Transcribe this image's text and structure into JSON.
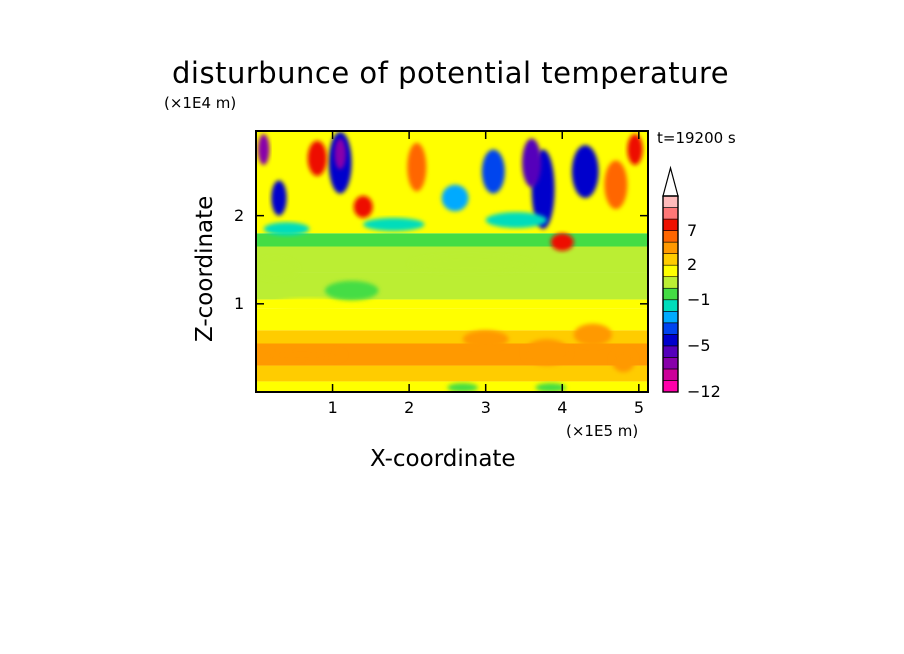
{
  "chart_data": {
    "type": "heatmap",
    "title": "disturbunce of potential temperature",
    "xlabel": "X-coordinate",
    "ylabel": "Z-coordinate",
    "x_unit": "(×1E5 m)",
    "y_unit": "(×1E4 m)",
    "time_label": "t=19200 s",
    "xlim": [
      0,
      5.12
    ],
    "ylim": [
      0,
      2.96
    ],
    "x_ticks": [
      {
        "value": 1,
        "label": "1"
      },
      {
        "value": 2,
        "label": "2"
      },
      {
        "value": 3,
        "label": "3"
      },
      {
        "value": 4,
        "label": "4"
      },
      {
        "value": 5,
        "label": "5"
      }
    ],
    "y_ticks": [
      {
        "value": 1,
        "label": "1"
      },
      {
        "value": 2,
        "label": "2"
      }
    ],
    "colorbar": {
      "levels": [
        -12,
        -11,
        -9,
        -7,
        -5,
        -4,
        -3,
        -2,
        -1,
        0,
        1,
        2,
        3,
        5,
        7,
        9,
        11
      ],
      "colors": [
        "#ff00aa",
        "#cc0099",
        "#8800aa",
        "#5500bb",
        "#0000cc",
        "#0044ee",
        "#00aaff",
        "#00ddbb",
        "#44dd44",
        "#bbee33",
        "#ffff00",
        "#ffcc00",
        "#ff9900",
        "#ff6600",
        "#ee1100",
        "#ff7777",
        "#ffbbbb"
      ],
      "tick_labels": [
        {
          "value": -12,
          "label": "−12"
        },
        {
          "value": -5,
          "label": "−5"
        },
        {
          "value": -1,
          "label": "−1"
        },
        {
          "value": 2,
          "label": "2"
        },
        {
          "value": 7,
          "label": "7"
        }
      ],
      "extend": "max"
    },
    "bands": [
      {
        "z0": 0.0,
        "z1": 0.12,
        "level": 1
      },
      {
        "z0": 0.12,
        "z1": 0.3,
        "level": 2
      },
      {
        "z0": 0.3,
        "z1": 0.55,
        "level": 3
      },
      {
        "z0": 0.55,
        "z1": 0.7,
        "level": 2
      },
      {
        "z0": 0.7,
        "z1": 0.95,
        "level": 1
      },
      {
        "z0": 0.95,
        "z1": 1.05,
        "level": 1
      },
      {
        "z0": 1.05,
        "z1": 1.35,
        "level": 0
      },
      {
        "z0": 1.35,
        "z1": 1.65,
        "level": 0
      },
      {
        "z0": 1.65,
        "z1": 1.8,
        "level": -1
      },
      {
        "z0": 1.8,
        "z1": 2.96,
        "level": 1
      }
    ],
    "features": [
      {
        "x": 0.6,
        "z": 0.42,
        "w": 1.1,
        "h": 0.16,
        "level": 3
      },
      {
        "x": 0.7,
        "z": 1.0,
        "w": 0.9,
        "h": 0.12,
        "level": 1
      },
      {
        "x": 1.25,
        "z": 1.15,
        "w": 0.7,
        "h": 0.22,
        "level": -1
      },
      {
        "x": 0.25,
        "z": 1.4,
        "w": 0.6,
        "h": 0.25,
        "level": 0
      },
      {
        "x": 2.8,
        "z": 1.45,
        "w": 1.6,
        "h": 0.2,
        "level": 0
      },
      {
        "x": 3.8,
        "z": 0.45,
        "w": 0.6,
        "h": 0.3,
        "level": 3
      },
      {
        "x": 3.0,
        "z": 0.6,
        "w": 0.6,
        "h": 0.2,
        "level": 3
      },
      {
        "x": 4.4,
        "z": 0.65,
        "w": 0.5,
        "h": 0.25,
        "level": 3
      },
      {
        "x": 4.8,
        "z": 0.35,
        "w": 0.3,
        "h": 0.25,
        "level": 3
      },
      {
        "x": 3.75,
        "z": 2.3,
        "w": 0.3,
        "h": 0.9,
        "level": -5
      },
      {
        "x": 3.6,
        "z": 2.6,
        "w": 0.25,
        "h": 0.55,
        "level": -7
      },
      {
        "x": 1.1,
        "z": 2.6,
        "w": 0.3,
        "h": 0.7,
        "level": -5
      },
      {
        "x": 1.1,
        "z": 2.7,
        "w": 0.15,
        "h": 0.35,
        "level": -9
      },
      {
        "x": 0.8,
        "z": 2.65,
        "w": 0.25,
        "h": 0.4,
        "level": 7
      },
      {
        "x": 1.4,
        "z": 2.1,
        "w": 0.25,
        "h": 0.25,
        "level": 7
      },
      {
        "x": 2.1,
        "z": 2.55,
        "w": 0.25,
        "h": 0.55,
        "level": 5
      },
      {
        "x": 3.1,
        "z": 2.5,
        "w": 0.3,
        "h": 0.5,
        "level": -4
      },
      {
        "x": 4.3,
        "z": 2.5,
        "w": 0.35,
        "h": 0.6,
        "level": -5
      },
      {
        "x": 4.7,
        "z": 2.35,
        "w": 0.3,
        "h": 0.55,
        "level": 5
      },
      {
        "x": 4.95,
        "z": 2.75,
        "w": 0.2,
        "h": 0.35,
        "level": 7
      },
      {
        "x": 0.1,
        "z": 2.75,
        "w": 0.15,
        "h": 0.35,
        "level": -9
      },
      {
        "x": 0.3,
        "z": 2.2,
        "w": 0.2,
        "h": 0.4,
        "level": -5
      },
      {
        "x": 2.6,
        "z": 2.2,
        "w": 0.35,
        "h": 0.3,
        "level": -3
      },
      {
        "x": 0.4,
        "z": 1.85,
        "w": 0.6,
        "h": 0.15,
        "level": -2
      },
      {
        "x": 1.8,
        "z": 1.9,
        "w": 0.8,
        "h": 0.15,
        "level": -2
      },
      {
        "x": 3.4,
        "z": 1.95,
        "w": 0.8,
        "h": 0.18,
        "level": -2
      },
      {
        "x": 4.0,
        "z": 1.7,
        "w": 0.3,
        "h": 0.2,
        "level": 7
      },
      {
        "x": 2.7,
        "z": 0.05,
        "w": 0.4,
        "h": 0.1,
        "level": -1
      },
      {
        "x": 3.85,
        "z": 0.05,
        "w": 0.4,
        "h": 0.1,
        "level": -1
      }
    ]
  }
}
